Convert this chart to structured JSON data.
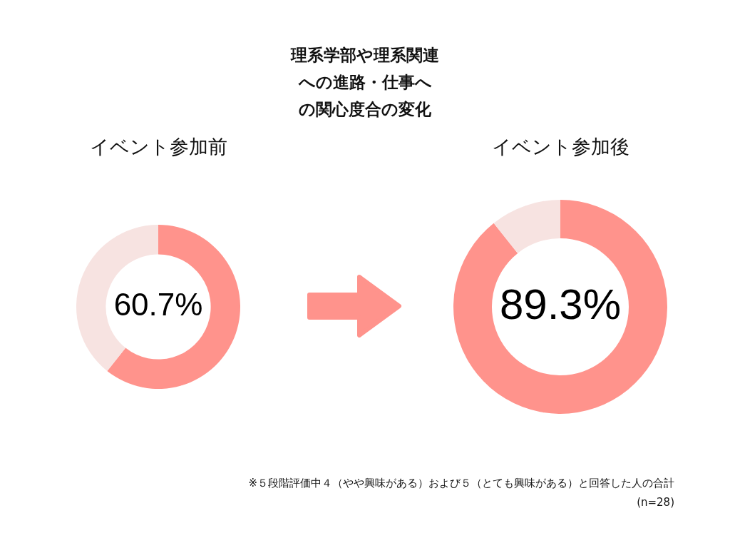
{
  "chart_data": [
    {
      "type": "donut",
      "title": "理系学部や理系関連への進路・仕事への関心度合の変化",
      "subtitle": "イベント参加前",
      "categories": [
        null,
        null
      ],
      "values": [
        60.7,
        39.3
      ],
      "colors": [
        "#ff938c",
        "#f7e3e1"
      ],
      "value_labels": [
        "60.7%",
        null
      ],
      "legend": false
    },
    {
      "type": "donut",
      "subtitle": "イベント参加後",
      "categories": [
        null,
        null
      ],
      "values": [
        89.3,
        10.7
      ],
      "colors": [
        "#ff938c",
        "#f7e3e1"
      ],
      "value_labels": [
        "89.3%",
        null
      ],
      "legend": false,
      "annotations": [
        "※５段階評価中４（やや興味がある）および５（とても興味がある）と回答した人の合計",
        "(n=28)"
      ]
    }
  ]
}
